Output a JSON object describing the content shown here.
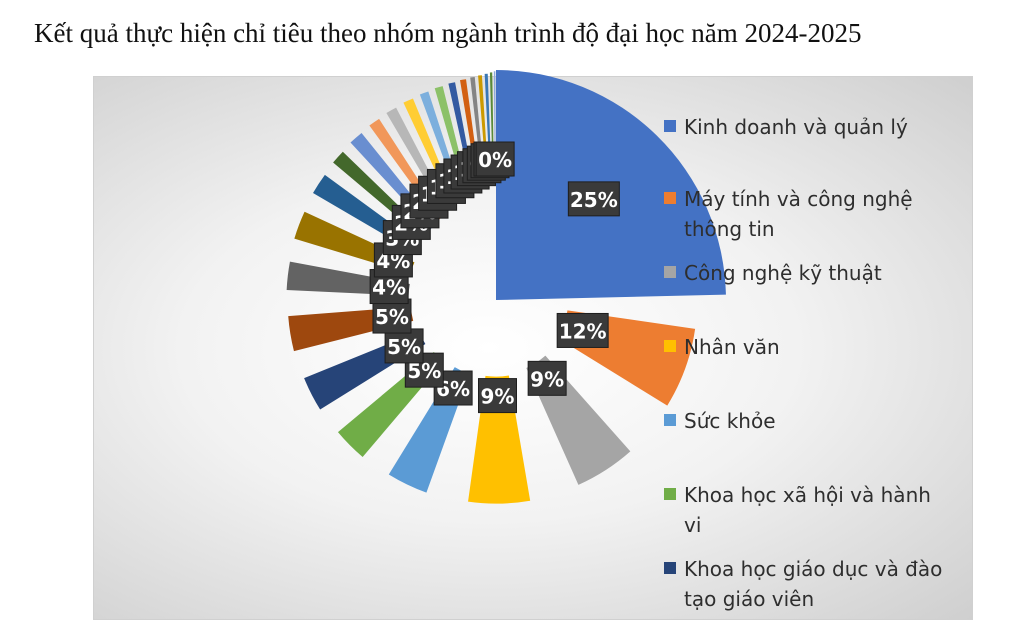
{
  "title": "Kết quả thực hiện chỉ tiêu theo nhóm ngành trình độ đại học năm 2024-2025",
  "chart_data": {
    "type": "pie",
    "title": "Kết quả thực hiện chỉ tiêu theo nhóm ngành trình độ đại học năm 2024-2025",
    "slices": [
      {
        "name": "Kinh doanh và quản lý",
        "value": 25,
        "label": "25%",
        "color": "#4472c4"
      },
      {
        "name": "Máy tính và công nghệ thông tin",
        "value": 12,
        "label": "12%",
        "color": "#ed7d31"
      },
      {
        "name": "Công nghệ kỹ thuật",
        "value": 9,
        "label": "9%",
        "color": "#a5a5a5"
      },
      {
        "name": "Nhân văn",
        "value": 9,
        "label": "9%",
        "color": "#ffc000"
      },
      {
        "name": "Sức khỏe",
        "value": 6,
        "label": "6%",
        "color": "#5b9bd5"
      },
      {
        "name": "Khoa học xã hội và hành vi",
        "value": 5,
        "label": "5%",
        "color": "#70ad47"
      },
      {
        "name": "Khoa học giáo dục và đào tạo giáo viên",
        "value": 5,
        "label": "5%",
        "color": "#264478"
      },
      {
        "value": 5,
        "label": "5%",
        "color": "#9e480e"
      },
      {
        "value": 4,
        "label": "4%",
        "color": "#636363"
      },
      {
        "value": 4,
        "label": "4%",
        "color": "#997300"
      },
      {
        "value": 3,
        "label": "3%",
        "color": "#255e91"
      },
      {
        "value": 2,
        "label": "2%",
        "color": "#43682b"
      },
      {
        "value": 2,
        "label": "2%",
        "color": "#698ed0"
      },
      {
        "value": 1.6,
        "label": "2%",
        "color": "#f1975a"
      },
      {
        "value": 1.5,
        "label": "1%",
        "color": "#b7b7b7"
      },
      {
        "value": 1.4,
        "label": "1%",
        "color": "#ffcd33"
      },
      {
        "value": 1.2,
        "label": "1%",
        "color": "#7cafdd"
      },
      {
        "value": 1.1,
        "label": "1%",
        "color": "#8cc168"
      },
      {
        "value": 0.9,
        "label": "1%",
        "color": "#335aa1"
      },
      {
        "value": 0.8,
        "label": "1%",
        "color": "#d26012"
      },
      {
        "value": 0.6,
        "label": "1%",
        "color": "#848484"
      },
      {
        "value": 0.5,
        "label": "0%",
        "color": "#cc9a00"
      },
      {
        "value": 0.4,
        "label": "0%",
        "color": "#3a78b5"
      },
      {
        "value": 0.3,
        "label": "0%",
        "color": "#5a8a39"
      },
      {
        "value": 0.2,
        "label": "0%",
        "color": "#8faadc"
      }
    ],
    "legend": "right"
  }
}
